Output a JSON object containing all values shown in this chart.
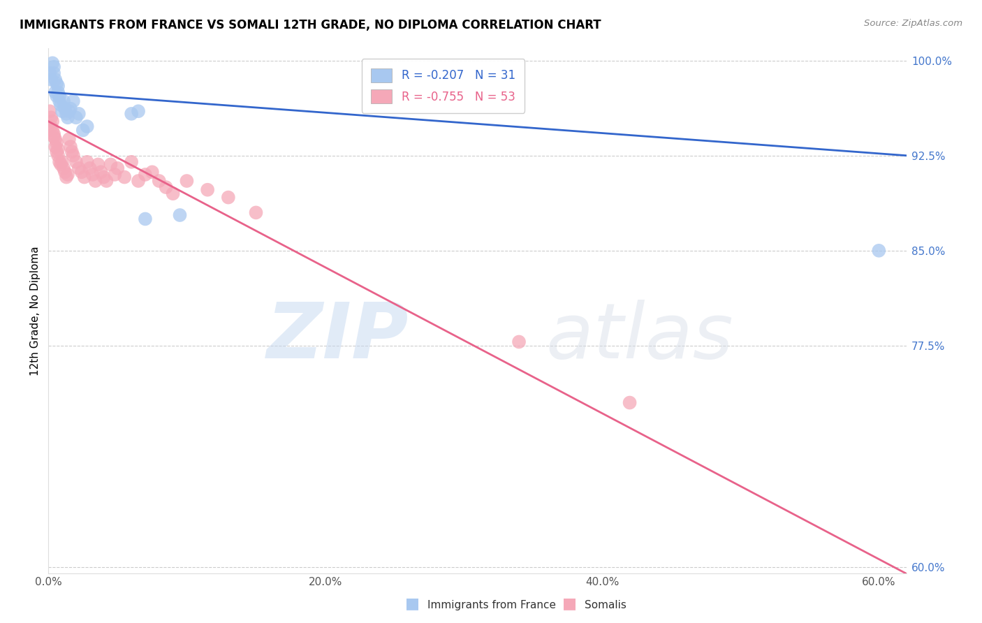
{
  "title": "IMMIGRANTS FROM FRANCE VS SOMALI 12TH GRADE, NO DIPLOMA CORRELATION CHART",
  "source": "Source: ZipAtlas.com",
  "ylabel_label": "12th Grade, No Diploma",
  "legend_france": "R = -0.207   N = 31",
  "legend_somali": "R = -0.755   N = 53",
  "france_color": "#a8c8f0",
  "somali_color": "#f5a8b8",
  "france_line_color": "#3366CC",
  "somali_line_color": "#E8628A",
  "watermark_zip": "ZIP",
  "watermark_atlas": "atlas",
  "xlim": [
    0.0,
    0.62
  ],
  "ylim": [
    0.595,
    1.01
  ],
  "yticks": [
    0.6,
    0.775,
    0.85,
    0.925,
    1.0
  ],
  "xticks": [
    0.0,
    0.2,
    0.4,
    0.6
  ],
  "france_line_x": [
    0.0,
    0.62
  ],
  "france_line_y": [
    0.975,
    0.925
  ],
  "somali_line_x": [
    0.0,
    0.62
  ],
  "somali_line_y": [
    0.952,
    0.595
  ],
  "france_x": [
    0.001,
    0.002,
    0.003,
    0.004,
    0.004,
    0.005,
    0.005,
    0.006,
    0.006,
    0.007,
    0.007,
    0.008,
    0.008,
    0.009,
    0.01,
    0.011,
    0.012,
    0.013,
    0.014,
    0.015,
    0.016,
    0.018,
    0.02,
    0.022,
    0.025,
    0.028,
    0.06,
    0.065,
    0.07,
    0.095,
    0.6
  ],
  "france_y": [
    0.99,
    0.985,
    0.998,
    0.995,
    0.99,
    0.985,
    0.975,
    0.982,
    0.972,
    0.975,
    0.98,
    0.968,
    0.972,
    0.965,
    0.96,
    0.968,
    0.962,
    0.958,
    0.955,
    0.96,
    0.962,
    0.968,
    0.955,
    0.958,
    0.945,
    0.948,
    0.958,
    0.96,
    0.875,
    0.878,
    0.85
  ],
  "somali_x": [
    0.001,
    0.002,
    0.002,
    0.003,
    0.003,
    0.004,
    0.004,
    0.005,
    0.005,
    0.006,
    0.006,
    0.007,
    0.007,
    0.008,
    0.009,
    0.01,
    0.011,
    0.012,
    0.013,
    0.014,
    0.015,
    0.016,
    0.017,
    0.018,
    0.02,
    0.022,
    0.024,
    0.026,
    0.028,
    0.03,
    0.032,
    0.034,
    0.036,
    0.038,
    0.04,
    0.042,
    0.045,
    0.048,
    0.05,
    0.055,
    0.06,
    0.065,
    0.07,
    0.075,
    0.08,
    0.085,
    0.09,
    0.1,
    0.115,
    0.13,
    0.15,
    0.34,
    0.42
  ],
  "somali_y": [
    0.96,
    0.955,
    0.948,
    0.952,
    0.945,
    0.94,
    0.942,
    0.938,
    0.932,
    0.935,
    0.928,
    0.93,
    0.925,
    0.92,
    0.918,
    0.92,
    0.915,
    0.912,
    0.908,
    0.91,
    0.938,
    0.932,
    0.928,
    0.925,
    0.92,
    0.915,
    0.912,
    0.908,
    0.92,
    0.915,
    0.91,
    0.905,
    0.918,
    0.912,
    0.908,
    0.905,
    0.918,
    0.91,
    0.915,
    0.908,
    0.92,
    0.905,
    0.91,
    0.912,
    0.905,
    0.9,
    0.895,
    0.905,
    0.898,
    0.892,
    0.88,
    0.778,
    0.73
  ]
}
